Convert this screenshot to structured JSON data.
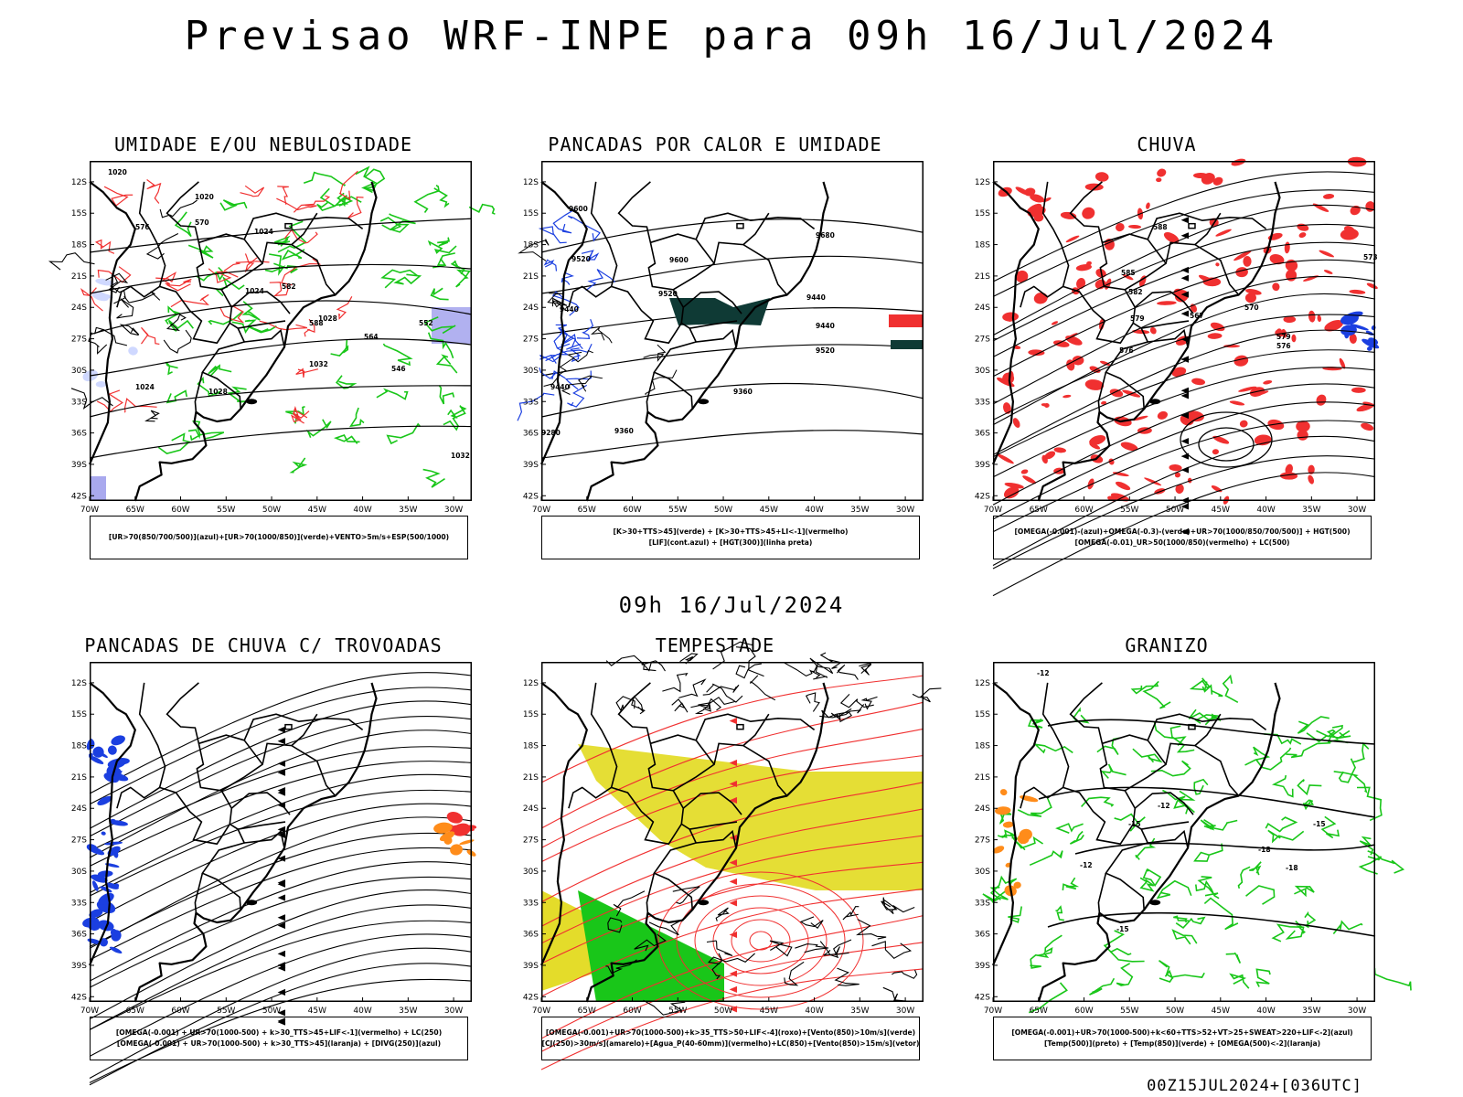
{
  "title": "Previsao WRF-INPE  para 09h 16/Jul/2024",
  "subtitle": "09h 16/Jul/2024",
  "run_label": "00Z15JUL2024+[036UTC]",
  "axes": {
    "lat_ticks": [
      "12S",
      "15S",
      "18S",
      "21S",
      "24S",
      "27S",
      "30S",
      "33S",
      "36S",
      "39S",
      "42S"
    ],
    "lon_ticks": [
      "70W",
      "65W",
      "60W",
      "55W",
      "50W",
      "45W",
      "40W",
      "35W",
      "30W"
    ]
  },
  "panels": [
    {
      "title": "UMIDADE E/OU NEBULOSIDADE",
      "legend": [
        "[UR>70(850/700/500)](azul)+[UR>70(1000/850)](verde)+VENTO>5m/s+ESP(500/1000)"
      ],
      "labels": [
        "1020",
        "1020",
        "1024",
        "1024",
        "1028",
        "1032",
        "1032",
        "1024",
        "1028",
        "570",
        "576",
        "582",
        "588",
        "564",
        "552",
        "546"
      ]
    },
    {
      "title": "PANCADAS POR CALOR E UMIDADE",
      "legend": [
        "[K>30+TTS>45](verde) + [K>30+TTS>45+LI<-1](vermelho)",
        "[LIF](cont.azul) + [HGT(300)](linha preta)"
      ],
      "labels": [
        "9600",
        "9680",
        "9520",
        "9600",
        "9440",
        "9520",
        "9440",
        "9520",
        "9440",
        "9360",
        "9360",
        "9280",
        "9440"
      ]
    },
    {
      "title": "CHUVA",
      "legend": [
        "[OMEGA(-0.001)-(azul)+OMEGA(-0.3)-(verde)+UR>70(1000/850/700/500)] + HGT(500)",
        "[OMEGA(-0.01)_UR>50(1000/850)(vermelho) + LC(500)"
      ],
      "labels": [
        "588",
        "585",
        "582",
        "579",
        "576",
        "573",
        "570",
        "567",
        "579",
        "576"
      ]
    },
    {
      "title": "PANCADAS DE CHUVA C/ TROVOADAS",
      "legend": [
        "[OMEGA(-0.001) + UR>70(1000-500) + k>30_TTS>45+LIF<-1](vermelho) + LC(250)",
        "[OMEGA(-0.001) + UR>70(1000-500) + k>30_TTS>45](laranja) + [DIVG(250)](azul)"
      ],
      "labels": []
    },
    {
      "title": "TEMPESTADE",
      "legend": [
        "[OMEGA(-0.001)+UR>70(1000-500)+k>35_TTS>50+LIF<-4](roxo)+[Vento(850)>10m/s](verde)",
        "[CJ(250)>30m/s](amarelo)+[Agua_P(40-60mm)](vermelho)+LC(850)+[Vento(850)>15m/s](vetor)"
      ],
      "labels": []
    },
    {
      "title": "GRANIZO",
      "legend": [
        "[OMEGA(-0.001)+UR>70(1000-500)+k<60+TTS>52+VT>25+SWEAT>220+LIF<-2](azul)",
        "[Temp(500)](preto) + [Temp(850)](verde) + [OMEGA(500)<-2](laranja)"
      ],
      "labels": [
        "-12",
        "-15",
        "-12",
        "-15",
        "-18",
        "-18",
        "-12",
        "-15"
      ]
    }
  ],
  "colors": {
    "green": "#19c619",
    "red": "#f03030",
    "blue": "#1b3fe0",
    "yellow": "#e4dc2a",
    "darkteal": "#0f3a35",
    "lavender": "#a9a9ee",
    "orange": "#ff8c1a"
  }
}
